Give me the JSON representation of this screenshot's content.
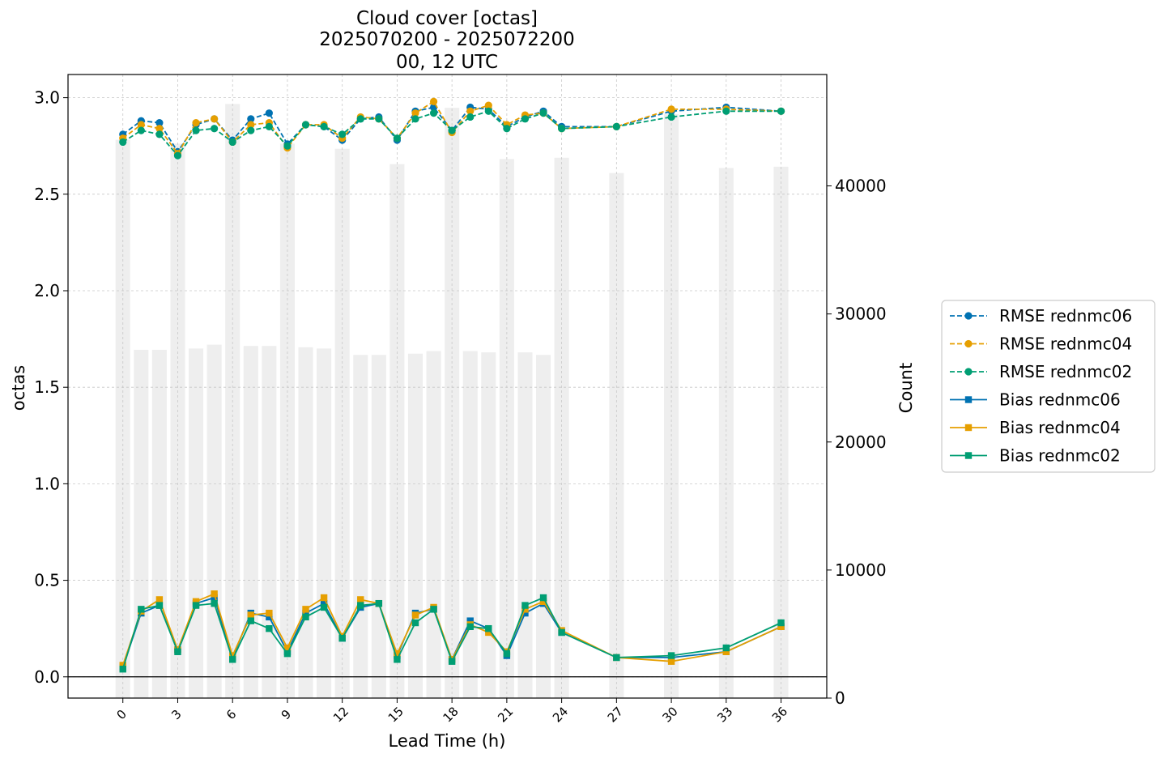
{
  "chart_data": {
    "type": "line",
    "title": [
      "Cloud cover [octas]",
      "2025070200 - 2025072200",
      "00, 12 UTC"
    ],
    "xlabel": "Lead Time (h)",
    "ylabel": "octas",
    "y2label": "Count",
    "xlim": [
      -3,
      38.5
    ],
    "ylim": [
      -0.11,
      3.12
    ],
    "y2lim": [
      0,
      48700
    ],
    "xticks": [
      0,
      3,
      6,
      9,
      12,
      15,
      18,
      21,
      24,
      27,
      30,
      33,
      36
    ],
    "yticks": [
      0.0,
      0.5,
      1.0,
      1.5,
      2.0,
      2.5,
      3.0
    ],
    "y2ticks": [
      0,
      10000,
      20000,
      30000,
      40000
    ],
    "grid": true,
    "legend_position": "right",
    "x": [
      0,
      1,
      2,
      3,
      4,
      5,
      6,
      7,
      8,
      9,
      10,
      11,
      12,
      13,
      14,
      15,
      16,
      17,
      18,
      19,
      20,
      21,
      22,
      23,
      24,
      27,
      30,
      33,
      36
    ],
    "counts": [
      43600,
      27200,
      27200,
      43300,
      27300,
      27600,
      46400,
      27500,
      27500,
      43300,
      27400,
      27300,
      42900,
      26800,
      26800,
      41700,
      26900,
      27100,
      46100,
      27100,
      27000,
      42100,
      27000,
      26800,
      42200,
      41000,
      45600,
      41400,
      41500
    ],
    "series": [
      {
        "name": "RMSE rednmc06",
        "style": "dashed",
        "marker": "circle",
        "color": "#0072b2",
        "values": [
          2.81,
          2.88,
          2.87,
          2.72,
          2.86,
          2.89,
          2.78,
          2.89,
          2.92,
          2.76,
          2.86,
          2.85,
          2.78,
          2.89,
          2.9,
          2.78,
          2.93,
          2.95,
          2.83,
          2.95,
          2.94,
          2.85,
          2.9,
          2.93,
          2.85,
          2.85,
          2.93,
          2.95,
          2.93
        ]
      },
      {
        "name": "RMSE rednmc04",
        "style": "dashed",
        "marker": "circle",
        "color": "#e69f00",
        "values": [
          2.79,
          2.86,
          2.84,
          2.71,
          2.87,
          2.89,
          2.77,
          2.86,
          2.87,
          2.74,
          2.86,
          2.86,
          2.79,
          2.9,
          2.89,
          2.79,
          2.92,
          2.98,
          2.82,
          2.93,
          2.96,
          2.86,
          2.91,
          2.92,
          2.84,
          2.85,
          2.94,
          2.94,
          2.93
        ]
      },
      {
        "name": "RMSE rednmc02",
        "style": "dashed",
        "marker": "circle",
        "color": "#009e73",
        "values": [
          2.77,
          2.83,
          2.81,
          2.7,
          2.83,
          2.84,
          2.77,
          2.83,
          2.85,
          2.75,
          2.86,
          2.85,
          2.81,
          2.89,
          2.89,
          2.79,
          2.89,
          2.92,
          2.83,
          2.9,
          2.93,
          2.84,
          2.89,
          2.92,
          2.84,
          2.85,
          2.9,
          2.93,
          2.93
        ]
      },
      {
        "name": "Bias rednmc06",
        "style": "solid",
        "marker": "square",
        "color": "#0072b2",
        "values": [
          0.05,
          0.33,
          0.37,
          0.14,
          0.38,
          0.41,
          0.1,
          0.33,
          0.31,
          0.13,
          0.33,
          0.38,
          0.2,
          0.36,
          0.38,
          0.11,
          0.33,
          0.35,
          0.09,
          0.29,
          0.25,
          0.11,
          0.33,
          0.38,
          0.23,
          0.1,
          0.1,
          0.13,
          0.26
        ]
      },
      {
        "name": "Bias rednmc04",
        "style": "solid",
        "marker": "square",
        "color": "#e69f00",
        "values": [
          0.06,
          0.34,
          0.4,
          0.14,
          0.39,
          0.43,
          0.11,
          0.32,
          0.33,
          0.15,
          0.35,
          0.41,
          0.21,
          0.4,
          0.38,
          0.12,
          0.32,
          0.36,
          0.09,
          0.27,
          0.23,
          0.13,
          0.35,
          0.39,
          0.24,
          0.1,
          0.08,
          0.13,
          0.26
        ]
      },
      {
        "name": "Bias rednmc02",
        "style": "solid",
        "marker": "square",
        "color": "#009e73",
        "values": [
          0.04,
          0.35,
          0.37,
          0.13,
          0.37,
          0.38,
          0.09,
          0.29,
          0.25,
          0.12,
          0.31,
          0.36,
          0.2,
          0.37,
          0.38,
          0.09,
          0.28,
          0.35,
          0.08,
          0.26,
          0.25,
          0.12,
          0.37,
          0.41,
          0.23,
          0.1,
          0.11,
          0.15,
          0.28
        ]
      }
    ]
  }
}
